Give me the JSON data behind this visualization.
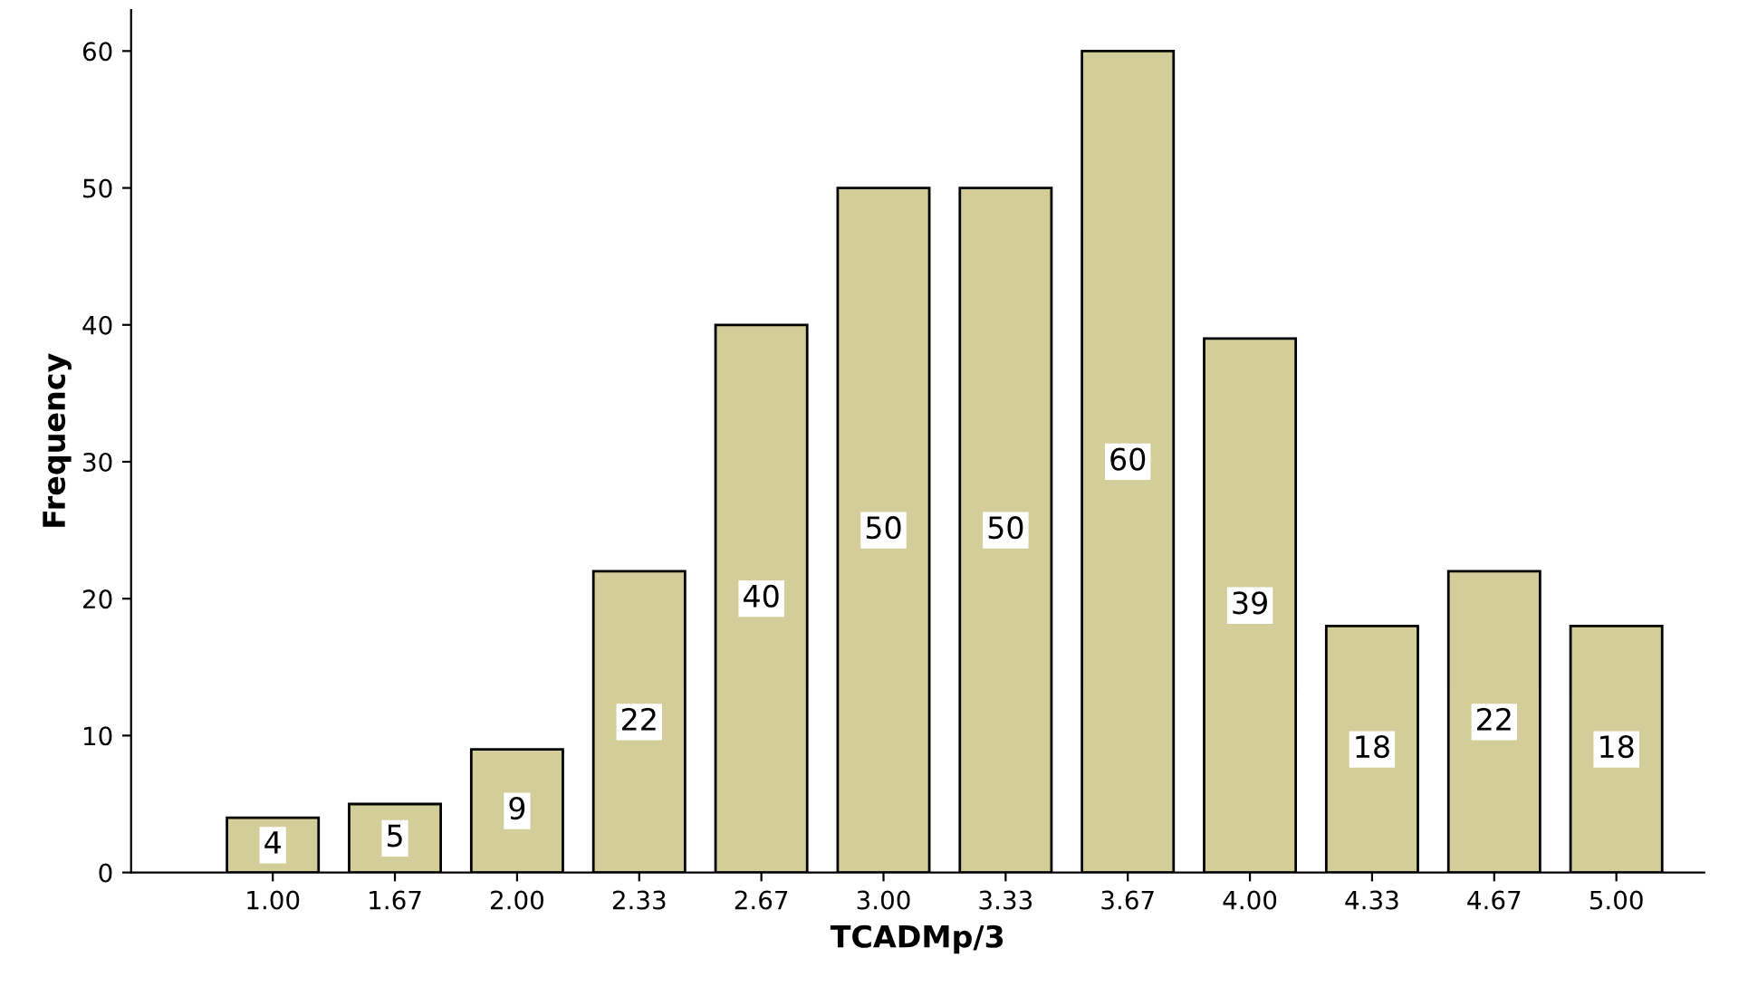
{
  "chart_data": {
    "type": "bar",
    "xlabel": "TCADMp/3",
    "ylabel": "Frequency",
    "categories": [
      "1.00",
      "1.67",
      "2.00",
      "2.33",
      "2.67",
      "3.00",
      "3.33",
      "3.67",
      "4.00",
      "4.33",
      "4.67",
      "5.00"
    ],
    "values": [
      4,
      5,
      9,
      22,
      40,
      50,
      50,
      60,
      39,
      18,
      22,
      18
    ],
    "color": "#d3ce99",
    "ylim": [
      0,
      63
    ],
    "yticks": [
      0,
      10,
      20,
      30,
      40,
      50,
      60
    ],
    "data_labels": true,
    "grid": false,
    "legend": false
  }
}
